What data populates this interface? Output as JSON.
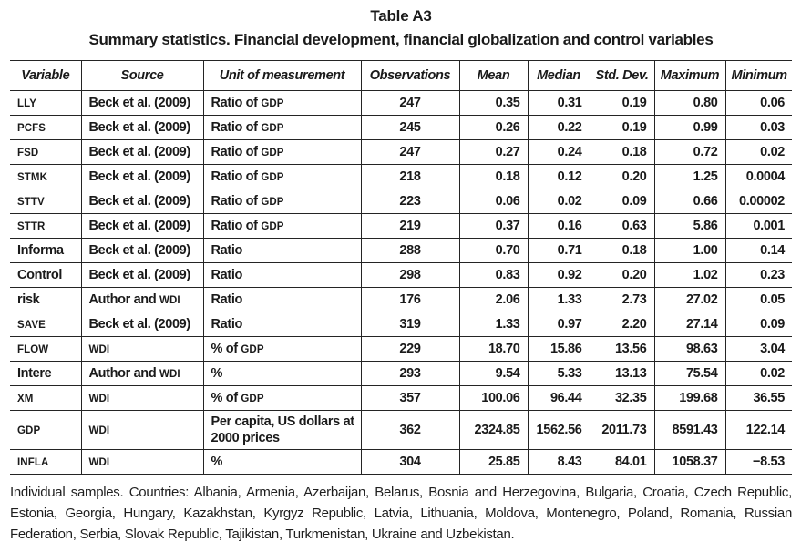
{
  "title": "Table A3",
  "subtitle": "Summary statistics. Financial development, financial globalization and control variables",
  "smallcaps_tokens": [
    "LLY",
    "PCFS",
    "FSD",
    "STMK",
    "STTV",
    "STTR",
    "SAVE",
    "FLOW",
    "XM",
    "GDP",
    "INFLA",
    "WDI"
  ],
  "table": {
    "columns": [
      "Variable",
      "Source",
      "Unit of measurement",
      "Observations",
      "Mean",
      "Median",
      "Std. Dev.",
      "Maximum",
      "Minimum"
    ],
    "rows": [
      {
        "variable": "LLY",
        "source": "Beck et al. (2009)",
        "unit": "Ratio of GDP",
        "observations": "247",
        "mean": "0.35",
        "median": "0.31",
        "std_dev": "0.19",
        "maximum": "0.80",
        "minimum": "0.06"
      },
      {
        "variable": "PCFS",
        "source": "Beck et al. (2009)",
        "unit": "Ratio of GDP",
        "observations": "245",
        "mean": "0.26",
        "median": "0.22",
        "std_dev": "0.19",
        "maximum": "0.99",
        "minimum": "0.03"
      },
      {
        "variable": "FSD",
        "source": "Beck et al. (2009)",
        "unit": "Ratio of GDP",
        "observations": "247",
        "mean": "0.27",
        "median": "0.24",
        "std_dev": "0.18",
        "maximum": "0.72",
        "minimum": "0.02"
      },
      {
        "variable": "STMK",
        "source": "Beck et al. (2009)",
        "unit": "Ratio of GDP",
        "observations": "218",
        "mean": "0.18",
        "median": "0.12",
        "std_dev": "0.20",
        "maximum": "1.25",
        "minimum": "0.0004"
      },
      {
        "variable": "STTV",
        "source": "Beck et al. (2009)",
        "unit": "Ratio of GDP",
        "observations": "223",
        "mean": "0.06",
        "median": "0.02",
        "std_dev": "0.09",
        "maximum": "0.66",
        "minimum": "0.00002"
      },
      {
        "variable": "STTR",
        "source": "Beck et al. (2009)",
        "unit": "Ratio of GDP",
        "observations": "219",
        "mean": "0.37",
        "median": "0.16",
        "std_dev": "0.63",
        "maximum": "5.86",
        "minimum": "0.001"
      },
      {
        "variable": "Informa",
        "source": "Beck et al. (2009)",
        "unit": "Ratio",
        "observations": "288",
        "mean": "0.70",
        "median": "0.71",
        "std_dev": "0.18",
        "maximum": "1.00",
        "minimum": "0.14"
      },
      {
        "variable": "Control",
        "source": "Beck et al. (2009)",
        "unit": "Ratio",
        "observations": "298",
        "mean": "0.83",
        "median": "0.92",
        "std_dev": "0.20",
        "maximum": "1.02",
        "minimum": "0.23"
      },
      {
        "variable": "risk",
        "source": "Author and WDI",
        "unit": "Ratio",
        "observations": "176",
        "mean": "2.06",
        "median": "1.33",
        "std_dev": "2.73",
        "maximum": "27.02",
        "minimum": "0.05"
      },
      {
        "variable": "SAVE",
        "source": "Beck et al. (2009)",
        "unit": "Ratio",
        "observations": "319",
        "mean": "1.33",
        "median": "0.97",
        "std_dev": "2.20",
        "maximum": "27.14",
        "minimum": "0.09"
      },
      {
        "variable": "FLOW",
        "source": "WDI",
        "unit": "% of GDP",
        "observations": "229",
        "mean": "18.70",
        "median": "15.86",
        "std_dev": "13.56",
        "maximum": "98.63",
        "minimum": "3.04"
      },
      {
        "variable": "Intere",
        "source": "Author and WDI",
        "unit": "%",
        "observations": "293",
        "mean": "9.54",
        "median": "5.33",
        "std_dev": "13.13",
        "maximum": "75.54",
        "minimum": "0.02"
      },
      {
        "variable": "XM",
        "source": "WDI",
        "unit": "% of GDP",
        "observations": "357",
        "mean": "100.06",
        "median": "96.44",
        "std_dev": "32.35",
        "maximum": "199.68",
        "minimum": "36.55"
      },
      {
        "variable": "GDP",
        "source": "WDI",
        "unit": "Per capita, US dollars at 2000 prices",
        "observations": "362",
        "mean": "2324.85",
        "median": "1562.56",
        "std_dev": "2011.73",
        "maximum": "8591.43",
        "minimum": "122.14"
      },
      {
        "variable": "INFLA",
        "source": "WDI",
        "unit": "%",
        "observations": "304",
        "mean": "25.85",
        "median": "8.43",
        "std_dev": "84.01",
        "maximum": "1058.37",
        "minimum": "−8.53"
      }
    ]
  },
  "footnote": "Individual samples. Countries: Albania, Armenia, Azerbaijan, Belarus, Bosnia and Herzegovina, Bulgaria, Croatia, Czech Republic, Estonia, Georgia, Hungary, Kazakhstan, Kyrgyz Republic, Latvia, Lithuania, Moldova, Montenegro, Poland, Romania, Russian Federation, Serbia, Slovak Republic, Tajikistan, Turkmenistan, Ukraine and Uzbekistan."
}
